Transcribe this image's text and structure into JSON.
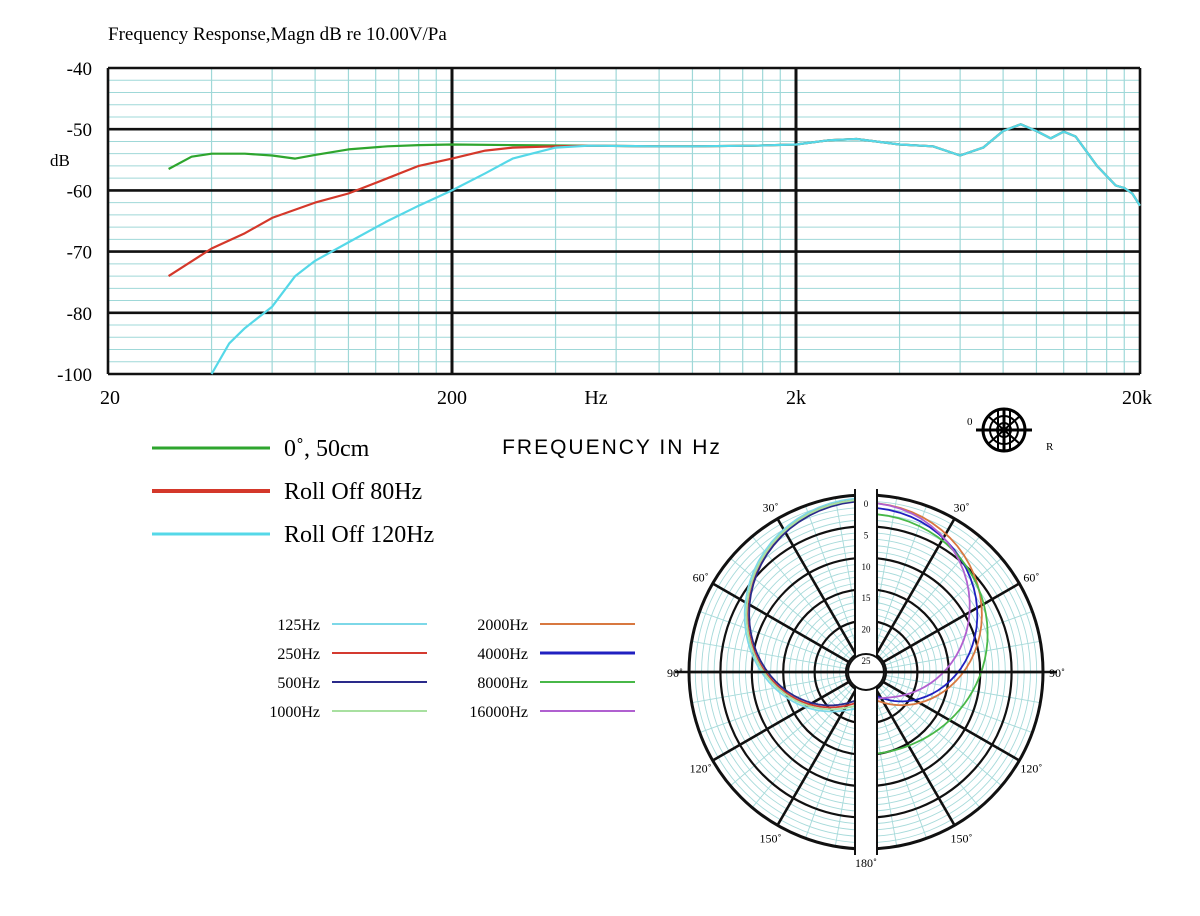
{
  "chart_data": [
    {
      "type": "line",
      "title": "Frequency   Response,Magn   dB re 10.00V/Pa",
      "ylabel": "dB",
      "xlabel": "FREQUENCY  IN  Hz",
      "x_unit_label": "Hz",
      "x_scale": "log",
      "xlim": [
        20,
        20000
      ],
      "ylim": [
        -100,
        -40
      ],
      "x_tick_labels": [
        {
          "value": 20,
          "label": "20"
        },
        {
          "value": 200,
          "label": "200"
        },
        {
          "value": 2000,
          "label": "2k"
        },
        {
          "value": 20000,
          "label": "20k"
        }
      ],
      "y_tick_labels": [
        {
          "value": -40,
          "label": "-40"
        },
        {
          "value": -50,
          "label": "-50"
        },
        {
          "value": -60,
          "label": "-60"
        },
        {
          "value": -70,
          "label": "-70"
        },
        {
          "value": -80,
          "label": "-80"
        },
        {
          "value": -100,
          "label": "-100"
        }
      ],
      "grid": true,
      "legend_position": "bottom-left",
      "series": [
        {
          "name": "0˚, 50cm",
          "color": "#2ea52e",
          "points": [
            [
              30,
              -56.5
            ],
            [
              35,
              -54.5
            ],
            [
              40,
              -54
            ],
            [
              50,
              -54
            ],
            [
              60,
              -54.3
            ],
            [
              70,
              -54.8
            ],
            [
              80,
              -54.2
            ],
            [
              100,
              -53.3
            ],
            [
              130,
              -52.8
            ],
            [
              160,
              -52.6
            ],
            [
              200,
              -52.5
            ],
            [
              300,
              -52.6
            ],
            [
              500,
              -52.7
            ],
            [
              800,
              -52.8
            ],
            [
              1000,
              -52.8
            ],
            [
              1500,
              -52.7
            ],
            [
              2000,
              -52.5
            ],
            [
              2500,
              -51.8
            ],
            [
              3000,
              -51.6
            ],
            [
              4000,
              -52.5
            ],
            [
              5000,
              -52.8
            ],
            [
              6000,
              -54.3
            ],
            [
              7000,
              -53
            ],
            [
              8000,
              -50.3
            ],
            [
              9000,
              -49.2
            ],
            [
              10000,
              -50.3
            ],
            [
              11000,
              -51.5
            ],
            [
              12000,
              -50.4
            ],
            [
              13000,
              -51.2
            ],
            [
              15000,
              -56
            ],
            [
              17000,
              -59.2
            ],
            [
              18000,
              -59.6
            ],
            [
              19000,
              -60.5
            ],
            [
              20000,
              -62.5
            ]
          ]
        },
        {
          "name": "Roll Off  80Hz",
          "color": "#d4382a",
          "points": [
            [
              30,
              -74
            ],
            [
              40,
              -69.5
            ],
            [
              50,
              -67
            ],
            [
              60,
              -64.5
            ],
            [
              80,
              -62
            ],
            [
              100,
              -60.5
            ],
            [
              130,
              -58
            ],
            [
              160,
              -56
            ],
            [
              200,
              -54.8
            ],
            [
              250,
              -53.5
            ],
            [
              300,
              -53
            ],
            [
              400,
              -52.8
            ],
            [
              500,
              -52.7
            ],
            [
              800,
              -52.8
            ],
            [
              1000,
              -52.8
            ],
            [
              1500,
              -52.7
            ],
            [
              2000,
              -52.5
            ],
            [
              2500,
              -51.8
            ],
            [
              3000,
              -51.6
            ],
            [
              4000,
              -52.5
            ],
            [
              5000,
              -52.8
            ],
            [
              6000,
              -54.3
            ],
            [
              7000,
              -53
            ],
            [
              8000,
              -50.3
            ],
            [
              9000,
              -49.2
            ],
            [
              10000,
              -50.3
            ],
            [
              11000,
              -51.5
            ],
            [
              12000,
              -50.4
            ],
            [
              13000,
              -51.2
            ],
            [
              15000,
              -56
            ],
            [
              17000,
              -59.2
            ],
            [
              18000,
              -59.6
            ],
            [
              19000,
              -60.5
            ],
            [
              20000,
              -62.5
            ]
          ]
        },
        {
          "name": "Roll Off  120Hz",
          "color": "#55d8e8",
          "points": [
            [
              40,
              -100
            ],
            [
              45,
              -90
            ],
            [
              50,
              -85
            ],
            [
              60,
              -79
            ],
            [
              70,
              -74
            ],
            [
              80,
              -71.5
            ],
            [
              100,
              -68.5
            ],
            [
              130,
              -65
            ],
            [
              160,
              -62.5
            ],
            [
              200,
              -60
            ],
            [
              250,
              -57.2
            ],
            [
              300,
              -54.8
            ],
            [
              400,
              -53
            ],
            [
              500,
              -52.7
            ],
            [
              800,
              -52.8
            ],
            [
              1000,
              -52.8
            ],
            [
              1500,
              -52.7
            ],
            [
              2000,
              -52.5
            ],
            [
              2500,
              -51.8
            ],
            [
              3000,
              -51.6
            ],
            [
              4000,
              -52.5
            ],
            [
              5000,
              -52.8
            ],
            [
              6000,
              -54.3
            ],
            [
              7000,
              -53
            ],
            [
              8000,
              -50.3
            ],
            [
              9000,
              -49.2
            ],
            [
              10000,
              -50.3
            ],
            [
              11000,
              -51.5
            ],
            [
              12000,
              -50.4
            ],
            [
              13000,
              -51.2
            ],
            [
              15000,
              -56
            ],
            [
              17000,
              -59.2
            ],
            [
              18000,
              -59.6
            ],
            [
              19000,
              -60.5
            ],
            [
              20000,
              -62.5
            ]
          ]
        }
      ]
    },
    {
      "type": "polar",
      "angle_labels": [
        "30˚",
        "60˚",
        "90˚",
        "120˚",
        "150˚",
        "180˚",
        "30˚",
        "60˚",
        "90˚",
        "120˚",
        "150˚"
      ],
      "radial_labels": [
        "0",
        "5",
        "10",
        "15",
        "20",
        "25"
      ],
      "legend_position": "left",
      "series": [
        {
          "name": "125Hz",
          "color": "#7dd8e8",
          "side": "left"
        },
        {
          "name": "250Hz",
          "color": "#d43a30",
          "side": "left"
        },
        {
          "name": "500Hz",
          "color": "#2a2a8a",
          "side": "left"
        },
        {
          "name": "1000Hz",
          "color": "#a8e0a0",
          "side": "left"
        },
        {
          "name": "2000Hz",
          "color": "#d87840",
          "side": "right"
        },
        {
          "name": "4000Hz",
          "color": "#2020c0",
          "side": "right"
        },
        {
          "name": "8000Hz",
          "color": "#48b848",
          "side": "right"
        },
        {
          "name": "16000Hz",
          "color": "#b060d0",
          "side": "right"
        }
      ]
    }
  ],
  "icon": {
    "name": "cardioid-pattern-icon",
    "left_letter": "0",
    "right_letter": "R"
  }
}
